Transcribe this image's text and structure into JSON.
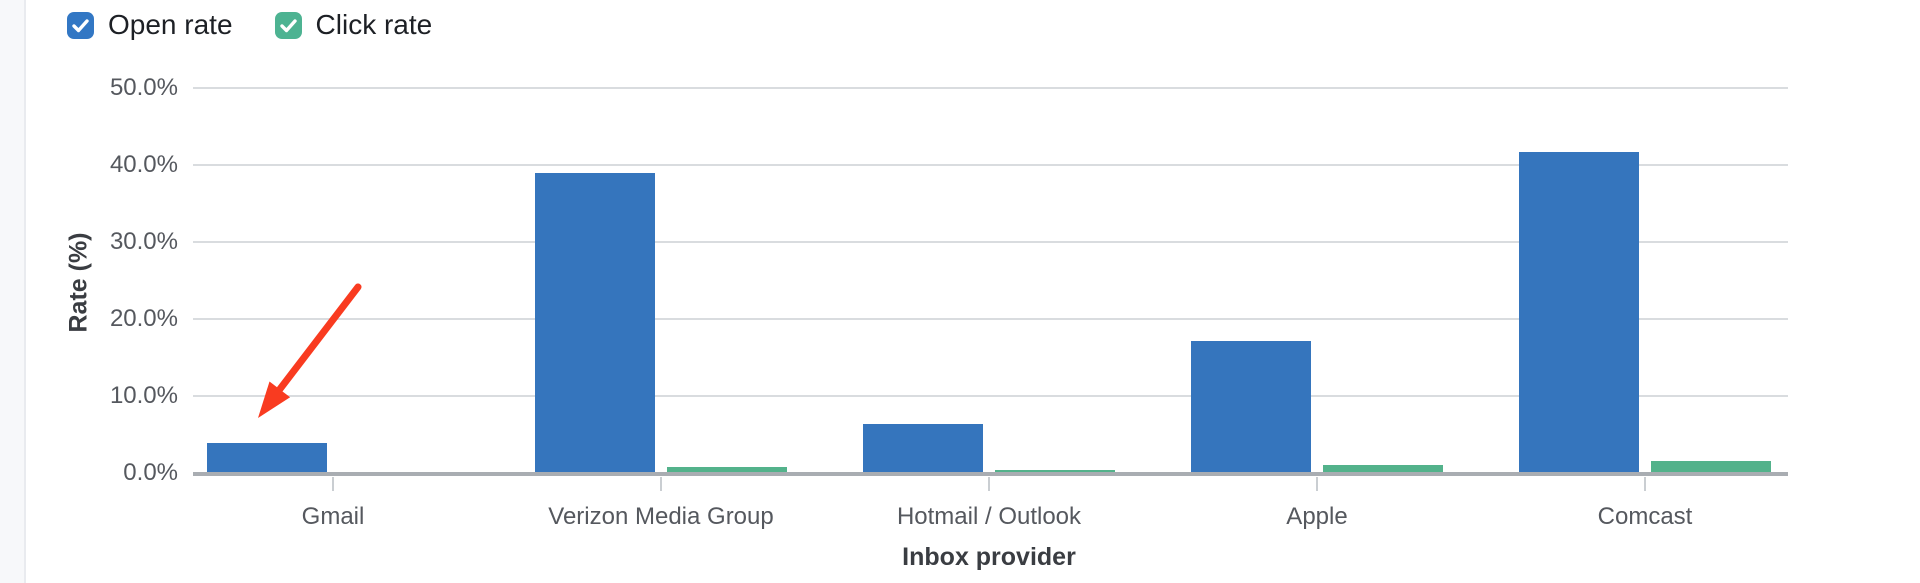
{
  "page": {
    "background_color": "#ffffff",
    "left_strip_color": "#f7f8fa"
  },
  "legend": {
    "items": [
      {
        "label": "Open rate",
        "color": "#3277c4",
        "checked": true
      },
      {
        "label": "Click rate",
        "color": "#4db392",
        "checked": true
      }
    ]
  },
  "chart_data": {
    "type": "bar",
    "title": "",
    "xlabel": "Inbox provider",
    "ylabel": "Rate (%)",
    "categories": [
      "Gmail",
      "Verizon Media Group",
      "Hotmail / Outlook",
      "Apple",
      "Comcast"
    ],
    "series": [
      {
        "name": "Open rate",
        "color": "#3575bd",
        "values": [
          3.9,
          39.0,
          6.4,
          17.1,
          41.7
        ]
      },
      {
        "name": "Click rate",
        "color": "#53b28b",
        "values": [
          0.0,
          0.8,
          0.4,
          1.0,
          1.6
        ]
      }
    ],
    "ylim": [
      0,
      50
    ],
    "ytick_step": 10,
    "ytick_labels": [
      "0.0%",
      "10.0%",
      "20.0%",
      "30.0%",
      "40.0%",
      "50.0%"
    ],
    "grid": true,
    "legend_position": "top-left"
  },
  "annotation": {
    "type": "arrow",
    "color": "#f93b20",
    "points_at": "Gmail Open rate bar"
  }
}
